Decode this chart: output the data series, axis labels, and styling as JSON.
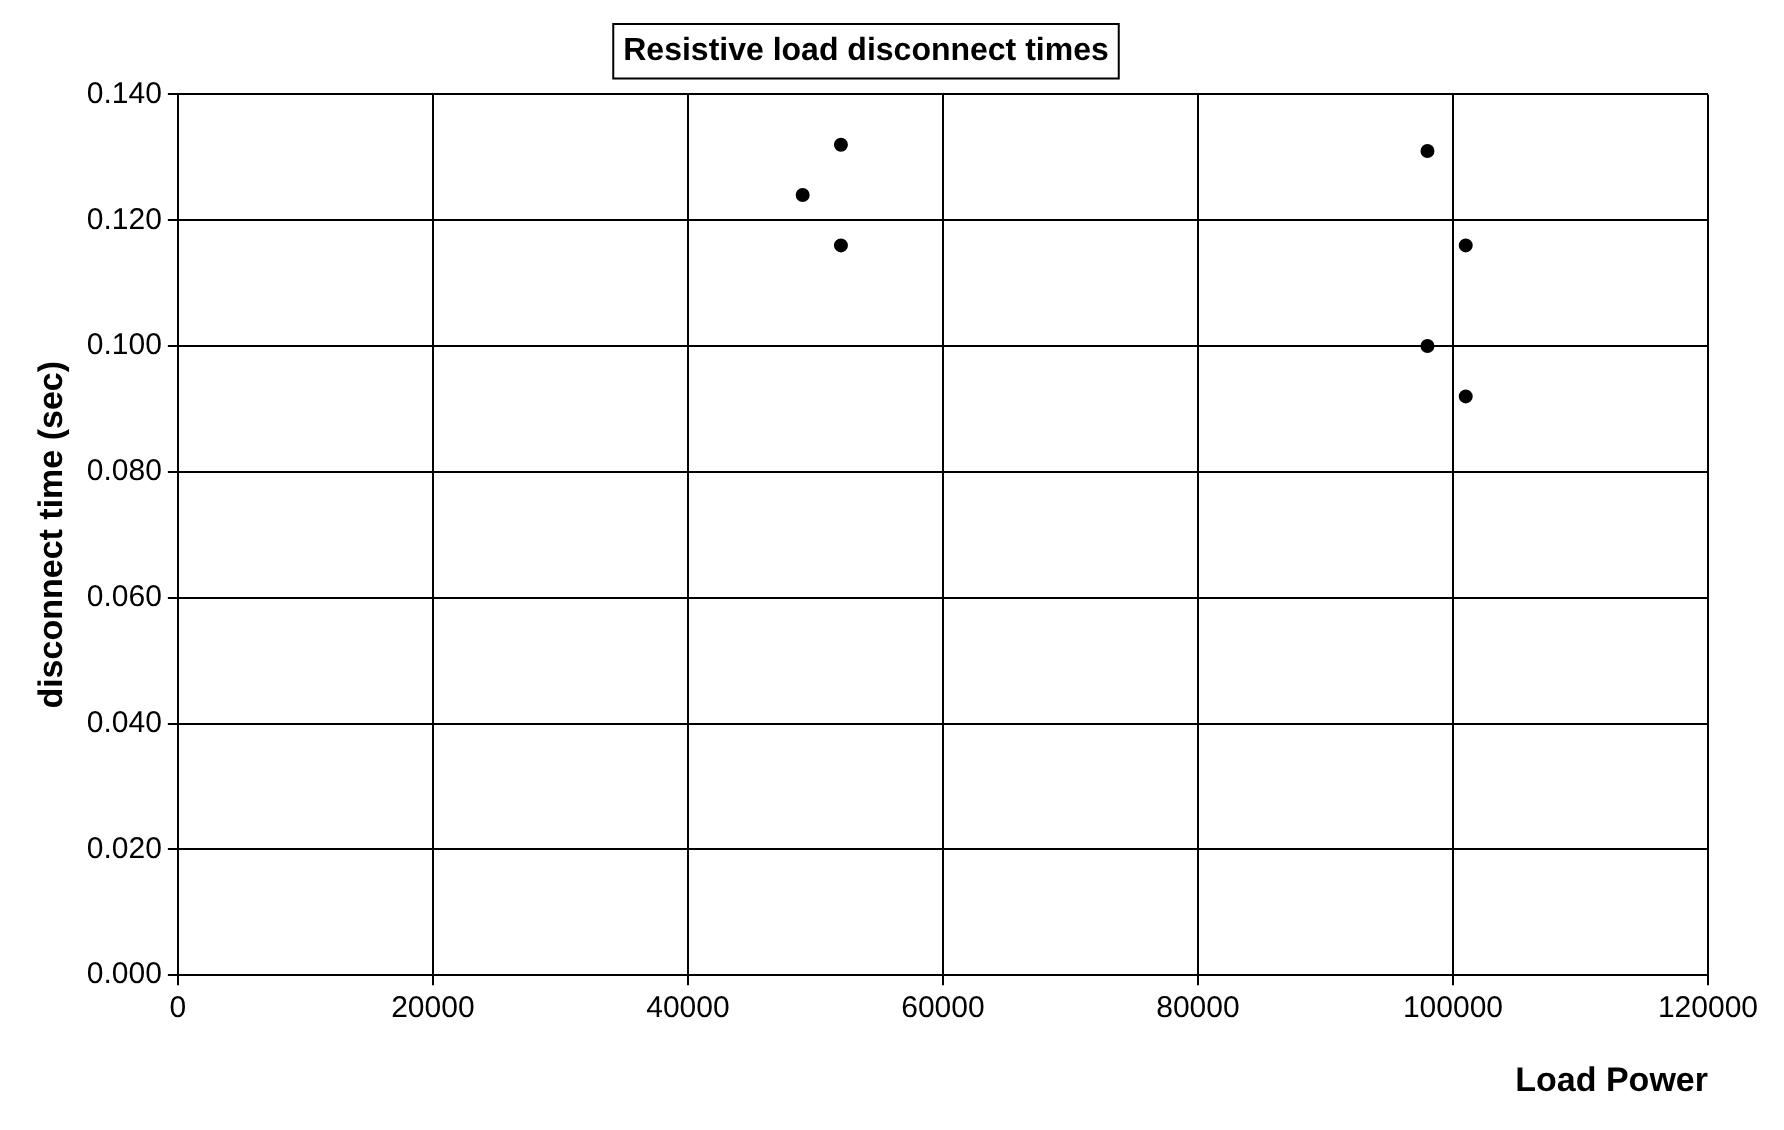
{
  "chart_data": {
    "type": "scatter",
    "title": "Resistive load disconnect times",
    "xlabel": "Load Power",
    "ylabel": "disconnect time (sec)",
    "series": [
      {
        "color": "#000000",
        "x": [
          52000,
          49000,
          52000,
          98000,
          101000,
          98000,
          101000
        ],
        "values": [
          0.132,
          0.124,
          0.116,
          0.131,
          0.116,
          0.1,
          0.092
        ]
      }
    ],
    "xlim": [
      0,
      120000
    ],
    "xticks": [
      0,
      20000,
      40000,
      60000,
      80000,
      100000,
      120000
    ],
    "ylim": [
      0,
      0.14
    ],
    "yticks": [
      {
        "value": 0,
        "label": "0.000"
      },
      {
        "value": 0.02,
        "label": "0.020"
      },
      {
        "value": 0.04,
        "label": "0.040"
      },
      {
        "value": 0.06,
        "label": "0.060"
      },
      {
        "value": 0.08,
        "label": "0.080"
      },
      {
        "value": 0.1,
        "label": "0.100"
      },
      {
        "value": 0.12,
        "label": "0.120"
      },
      {
        "value": 0.14,
        "label": "0.140"
      }
    ],
    "grid": true,
    "legend": false,
    "marker": "circle"
  }
}
